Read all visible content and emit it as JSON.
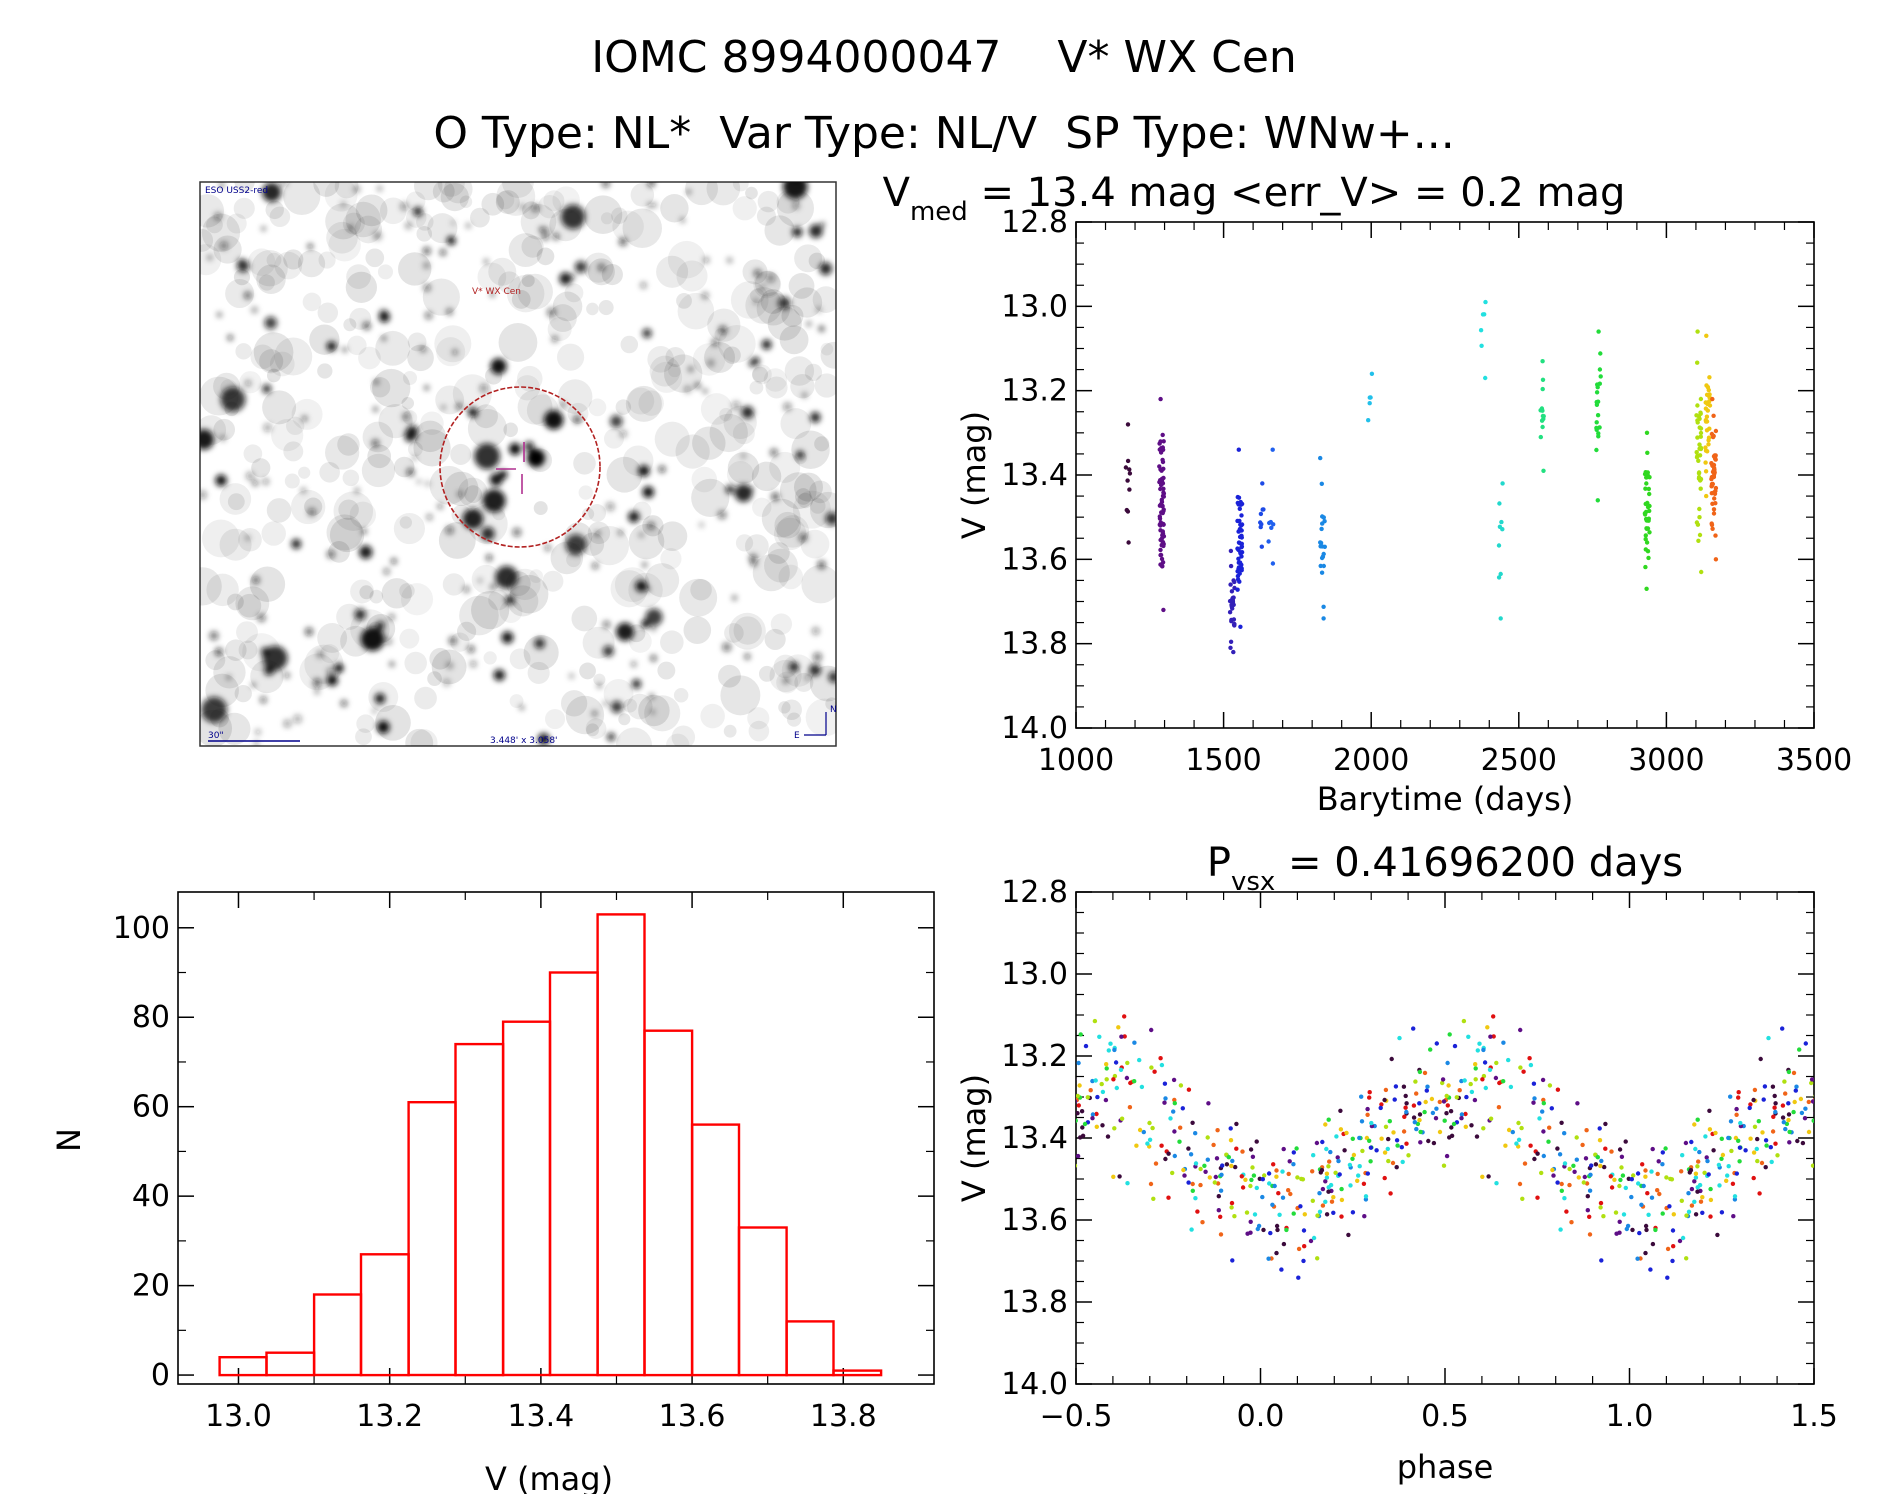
{
  "header": {
    "line1": "IOMC 8994000047    V* WX Cen",
    "line2": "O Type: NL*  Var Type: NL/V  SP Type: WNw+..."
  },
  "finder": {
    "survey_label": "ESO USS2-red",
    "target_label": "V* WX Cen",
    "scale_label": "30\"",
    "fov_label": "3.448' x 3.058'",
    "north_label": "N",
    "east_label": "E"
  },
  "chart_data": [
    {
      "id": "lightcurve",
      "type": "scatter",
      "title_prefix": "V",
      "title_sub": "med",
      "title_rest": " = 13.4 mag <err_V> = 0.2 mag",
      "xlabel": "Barytime (days)",
      "ylabel": "V (mag)",
      "xlim": [
        1000,
        3500
      ],
      "ylim": [
        14.0,
        12.8
      ],
      "xticks": [
        1000,
        1500,
        2000,
        2500,
        3000,
        3500
      ],
      "yticks": [
        12.8,
        13.0,
        13.2,
        13.4,
        13.6,
        13.8,
        14.0
      ],
      "clusters": [
        {
          "x": 1175,
          "ymin": 13.28,
          "ymax": 13.56,
          "n": 10,
          "color": "#3b0a3b"
        },
        {
          "x": 1290,
          "ymin": 13.22,
          "ymax": 13.72,
          "n": 70,
          "color": "#5e0e86"
        },
        {
          "x": 1530,
          "ymin": 13.58,
          "ymax": 13.82,
          "n": 28,
          "color": "#3320b8"
        },
        {
          "x": 1555,
          "ymin": 13.34,
          "ymax": 13.76,
          "n": 50,
          "color": "#1a22d8"
        },
        {
          "x": 1630,
          "ymin": 13.42,
          "ymax": 13.57,
          "n": 8,
          "color": "#1d4ae6"
        },
        {
          "x": 1660,
          "ymin": 13.34,
          "ymax": 13.61,
          "n": 7,
          "color": "#2060ee"
        },
        {
          "x": 1835,
          "ymin": 13.36,
          "ymax": 13.74,
          "n": 20,
          "color": "#1a88e4"
        },
        {
          "x": 1995,
          "ymin": 13.16,
          "ymax": 13.27,
          "n": 5,
          "color": "#22c0ea"
        },
        {
          "x": 2380,
          "ymin": 12.99,
          "ymax": 13.17,
          "n": 6,
          "color": "#22e0e0"
        },
        {
          "x": 2440,
          "ymin": 13.42,
          "ymax": 13.74,
          "n": 9,
          "color": "#22d8cc"
        },
        {
          "x": 2580,
          "ymin": 13.13,
          "ymax": 13.39,
          "n": 14,
          "color": "#22e080"
        },
        {
          "x": 2770,
          "ymin": 13.06,
          "ymax": 13.46,
          "n": 20,
          "color": "#22dc3a"
        },
        {
          "x": 2935,
          "ymin": 13.3,
          "ymax": 13.67,
          "n": 38,
          "color": "#30d820"
        },
        {
          "x": 3110,
          "ymin": 13.06,
          "ymax": 13.63,
          "n": 40,
          "color": "#b0e010"
        },
        {
          "x": 3140,
          "ymin": 13.07,
          "ymax": 13.45,
          "n": 30,
          "color": "#f0c810"
        },
        {
          "x": 3160,
          "ymin": 13.22,
          "ymax": 13.6,
          "n": 45,
          "color": "#f06418"
        }
      ]
    },
    {
      "id": "histogram",
      "type": "bar",
      "xlabel": "V (mag)",
      "ylabel": "N",
      "xlim": [
        12.92,
        13.92
      ],
      "ylim": [
        -2,
        108
      ],
      "xticks": [
        13.0,
        13.2,
        13.4,
        13.6,
        13.8
      ],
      "yticks": [
        0,
        20,
        40,
        60,
        80,
        100
      ],
      "bin_edges": [
        12.975,
        13.037,
        13.1,
        13.162,
        13.225,
        13.287,
        13.35,
        13.412,
        13.475,
        13.537,
        13.6,
        13.662,
        13.725,
        13.787,
        13.85
      ],
      "counts": [
        4,
        5,
        18,
        27,
        61,
        74,
        79,
        90,
        103,
        77,
        56,
        33,
        12,
        1
      ],
      "color": "#ff0000"
    },
    {
      "id": "phased",
      "type": "scatter",
      "title_prefix": "P",
      "title_sub": "vsx",
      "title_rest": " = 0.41696200 days",
      "xlabel": "phase",
      "ylabel": "V (mag)",
      "xlim": [
        -0.5,
        1.5
      ],
      "ylim": [
        14.0,
        12.8
      ],
      "xticks": [
        -0.5,
        0.0,
        0.5,
        1.0,
        1.5
      ],
      "yticks": [
        12.8,
        13.0,
        13.2,
        13.4,
        13.6,
        13.8,
        14.0
      ],
      "colors": [
        "#5e0e86",
        "#1a22d8",
        "#1a88e4",
        "#22e0e0",
        "#22dc3a",
        "#b0e010",
        "#f0c810",
        "#f06418",
        "#e01010",
        "#3b0a3b"
      ]
    }
  ]
}
